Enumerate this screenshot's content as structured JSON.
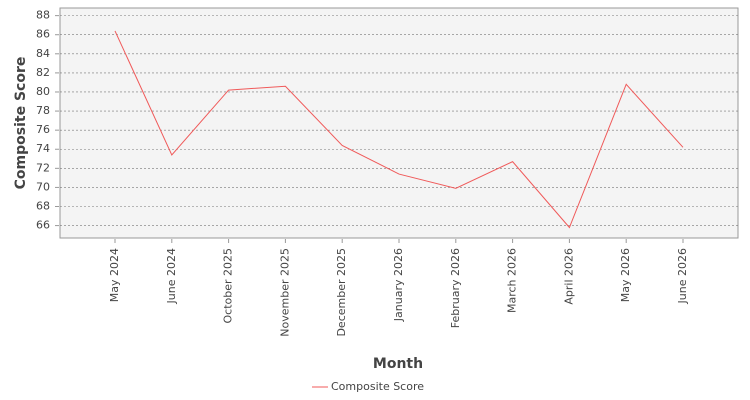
{
  "chart_data": {
    "type": "line",
    "x_label": "Month",
    "y_label": "Composite Score",
    "categories": [
      "May 2024",
      "June 2024",
      "October 2025",
      "November 2025",
      "December 2025",
      "January 2026",
      "February 2026",
      "March 2026",
      "April 2026",
      "May 2026",
      "June 2026"
    ],
    "series": [
      {
        "name": "Composite Score",
        "color": "#f05a5a",
        "values": [
          86.4,
          73.4,
          80.2,
          80.6,
          74.4,
          71.4,
          69.9,
          72.7,
          65.8,
          80.8,
          74.2
        ]
      }
    ],
    "ylim": [
      64.7,
      88.8
    ],
    "yticks": [
      66,
      68,
      70,
      72,
      74,
      76,
      78,
      80,
      82,
      84,
      86,
      88
    ],
    "grid": true,
    "legend": "bottom"
  }
}
